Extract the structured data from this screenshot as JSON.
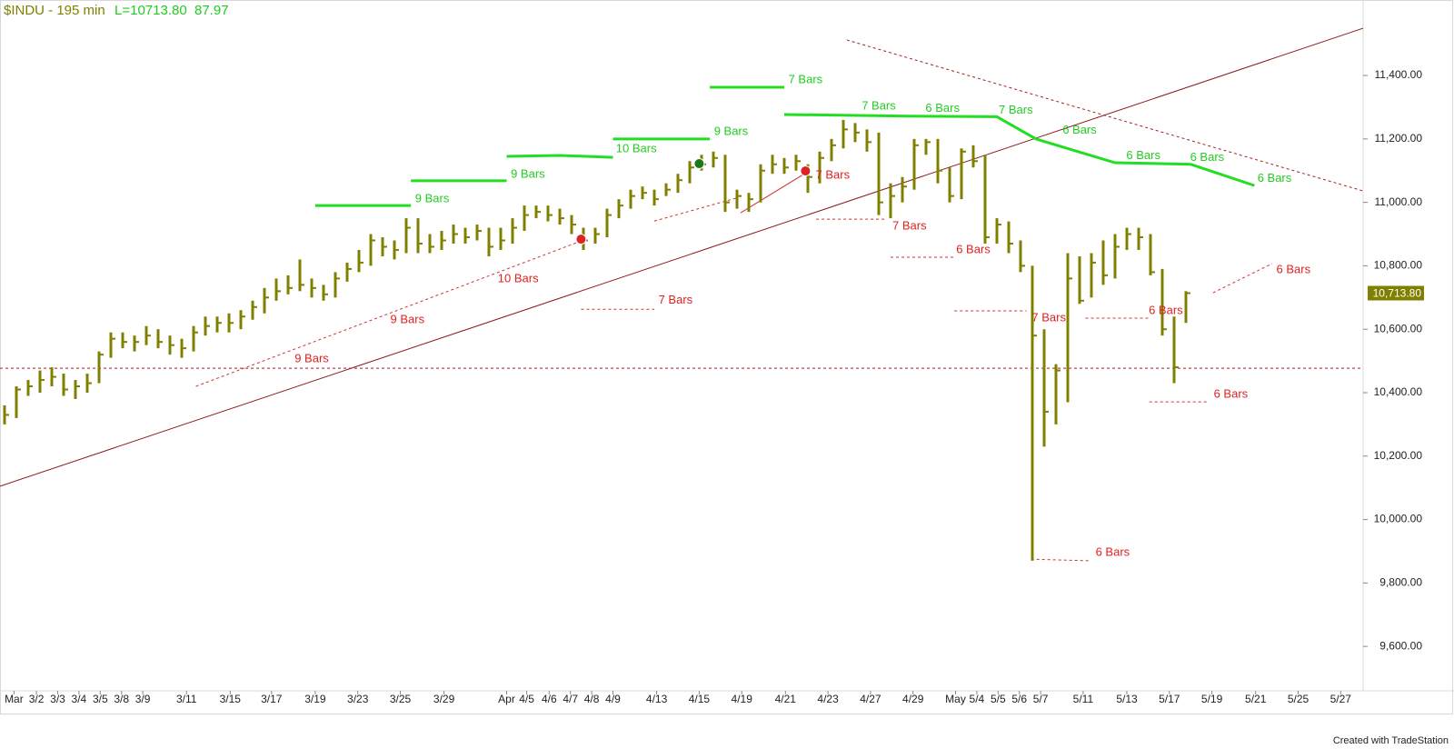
{
  "chart_data": {
    "type": "ohlc",
    "title": "$INDU - 195 min",
    "last": "L=10713.80",
    "change": "87.97",
    "footer": "Created with TradeStation",
    "bar_color": "#808000",
    "ylim": [
      9460,
      11638
    ],
    "xlim": [
      -0.385,
      115
    ],
    "yticks": [
      {
        "value": 9600,
        "label": "9,600.00"
      },
      {
        "value": 9800,
        "label": "9,800.00"
      },
      {
        "value": 10000,
        "label": "10,000.00"
      },
      {
        "value": 10200,
        "label": "10,200.00"
      },
      {
        "value": 10400,
        "label": "10,400.00"
      },
      {
        "value": 10600,
        "label": "10,600.00"
      },
      {
        "value": 10800,
        "label": "10,800.00"
      },
      {
        "value": 11000,
        "label": "11,000.00"
      },
      {
        "value": 11200,
        "label": "11,200.00"
      },
      {
        "value": 11400,
        "label": "11,400.00"
      }
    ],
    "xticks": [
      {
        "value": 0.8,
        "label": "Mar"
      },
      {
        "value": 2.7,
        "label": "3/2"
      },
      {
        "value": 4.5,
        "label": "3/3"
      },
      {
        "value": 6.3,
        "label": "3/4"
      },
      {
        "value": 8.1,
        "label": "3/5"
      },
      {
        "value": 9.9,
        "label": "3/8"
      },
      {
        "value": 11.7,
        "label": "3/9"
      },
      {
        "value": 15.4,
        "label": "3/11"
      },
      {
        "value": 19.1,
        "label": "3/15"
      },
      {
        "value": 22.6,
        "label": "3/17"
      },
      {
        "value": 26.3,
        "label": "3/19"
      },
      {
        "value": 29.9,
        "label": "3/23"
      },
      {
        "value": 33.5,
        "label": "3/25"
      },
      {
        "value": 37.2,
        "label": "3/29"
      },
      {
        "value": 42.5,
        "label": "Apr"
      },
      {
        "value": 44.2,
        "label": "4/5"
      },
      {
        "value": 46.1,
        "label": "4/6"
      },
      {
        "value": 47.9,
        "label": "4/7"
      },
      {
        "value": 49.7,
        "label": "4/8"
      },
      {
        "value": 51.5,
        "label": "4/9"
      },
      {
        "value": 55.2,
        "label": "4/13"
      },
      {
        "value": 58.8,
        "label": "4/15"
      },
      {
        "value": 62.4,
        "label": "4/19"
      },
      {
        "value": 66.1,
        "label": "4/21"
      },
      {
        "value": 69.7,
        "label": "4/23"
      },
      {
        "value": 73.3,
        "label": "4/27"
      },
      {
        "value": 76.9,
        "label": "4/29"
      },
      {
        "value": 80.5,
        "label": "May"
      },
      {
        "value": 82.3,
        "label": "5/4"
      },
      {
        "value": 84.1,
        "label": "5/5"
      },
      {
        "value": 85.9,
        "label": "5/6"
      },
      {
        "value": 87.7,
        "label": "5/7"
      },
      {
        "value": 91.3,
        "label": "5/11"
      },
      {
        "value": 95.0,
        "label": "5/13"
      },
      {
        "value": 98.6,
        "label": "5/17"
      },
      {
        "value": 102.2,
        "label": "5/19"
      },
      {
        "value": 105.9,
        "label": "5/21"
      },
      {
        "value": 109.5,
        "label": "5/25"
      },
      {
        "value": 113.1,
        "label": "5/27"
      }
    ],
    "high": [
      10360,
      10420,
      10440,
      10470,
      10480,
      10460,
      10440,
      10460,
      10530,
      10590,
      10590,
      10580,
      10610,
      10600,
      10580,
      10570,
      10610,
      10640,
      10640,
      10650,
      10660,
      10690,
      10730,
      10760,
      10770,
      10820,
      10760,
      10740,
      10780,
      10810,
      10850,
      10900,
      10890,
      10880,
      10950,
      10950,
      10900,
      10910,
      10930,
      10920,
      10930,
      10920,
      10920,
      10950,
      10990,
      10990,
      10990,
      10980,
      10960,
      10920,
      10920,
      10980,
      11010,
      11040,
      11050,
      11040,
      11060,
      11090,
      11130,
      11150,
      11160,
      11150,
      11040,
      11030,
      11120,
      11150,
      11140,
      11150,
      11120,
      11160,
      11200,
      11260,
      11250,
      11230,
      11220,
      11060,
      11080,
      11200,
      11200,
      11200,
      11110,
      11170,
      11180,
      11150,
      10950,
      10940,
      10880,
      10800,
      10600,
      10490,
      10840,
      10830,
      10840,
      10880,
      10900,
      10920,
      10920,
      10900,
      10790,
      10640,
      10720
    ],
    "low": [
      10300,
      10320,
      10390,
      10400,
      10420,
      10390,
      10380,
      10400,
      10430,
      10510,
      10540,
      10530,
      10550,
      10540,
      10520,
      10510,
      10530,
      10580,
      10590,
      10590,
      10600,
      10630,
      10650,
      10690,
      10710,
      10720,
      10700,
      10690,
      10700,
      10750,
      10780,
      10800,
      10830,
      10820,
      10840,
      10840,
      10840,
      10850,
      10870,
      10870,
      10880,
      10830,
      10850,
      10870,
      10910,
      10950,
      10940,
      10930,
      10900,
      10850,
      10870,
      10890,
      10950,
      10980,
      11010,
      10990,
      11020,
      11030,
      11060,
      11100,
      11110,
      10970,
      10980,
      10970,
      11000,
      11090,
      11090,
      11100,
      11030,
      11060,
      11130,
      11170,
      11190,
      11160,
      10960,
      10950,
      11000,
      11040,
      11150,
      11060,
      11000,
      11010,
      11110,
      10870,
      10870,
      10840,
      10780,
      9870,
      10230,
      10300,
      10370,
      10680,
      10700,
      10740,
      10760,
      10850,
      10850,
      10770,
      10580,
      10430,
      10620
    ],
    "close": [
      10330,
      10410,
      10420,
      10440,
      10450,
      10410,
      10420,
      10430,
      10520,
      10570,
      10560,
      10560,
      10580,
      10560,
      10550,
      10540,
      10590,
      10610,
      10620,
      10620,
      10640,
      10670,
      10700,
      10720,
      10730,
      10740,
      10730,
      10710,
      10760,
      10790,
      10810,
      10880,
      10860,
      10850,
      10920,
      10870,
      10860,
      10880,
      10900,
      10890,
      10910,
      10860,
      10880,
      10920,
      10960,
      10970,
      10960,
      10950,
      10930,
      10880,
      10900,
      10960,
      10990,
      11020,
      11030,
      11010,
      11040,
      11070,
      11110,
      11120,
      11140,
      11000,
      11020,
      11010,
      11100,
      11120,
      11110,
      11130,
      11080,
      11140,
      11180,
      11230,
      11220,
      11190,
      11000,
      11020,
      11050,
      11180,
      11190,
      11100,
      11020,
      11160,
      11130,
      10890,
      10930,
      10870,
      10800,
      10580,
      10340,
      10470,
      10760,
      10690,
      10810,
      10770,
      10860,
      10900,
      10890,
      10780,
      10600,
      10480,
      10713.8
    ],
    "last_price": {
      "value": 10713.8,
      "label": "10,713.80"
    },
    "lines": [
      {
        "x": [
          -0.385,
          115
        ],
        "y": [
          10105,
          11549
        ],
        "color": "#8b1a1a",
        "style": "solid"
      },
      {
        "x": [
          71.3,
          115
        ],
        "y": [
          11512,
          11036
        ],
        "color": "#a02020",
        "style": "dashed"
      },
      {
        "x": [
          -0.385,
          115
        ],
        "y": [
          10477,
          10477
        ],
        "color": "#a02020",
        "style": "dashed"
      },
      {
        "x": [
          16.2,
          48.8
        ],
        "y": [
          10420,
          10878
        ],
        "color": "#cc3333",
        "style": "dashed"
      },
      {
        "x": [
          55,
          61.9
        ],
        "y": [
          10941,
          11013
        ],
        "color": "#cc3333",
        "style": "dashed"
      },
      {
        "x": [
          62.3,
          68.1
        ],
        "y": [
          10967,
          11099
        ],
        "color": "#cc3333",
        "style": "solid"
      },
      {
        "x": [
          102.3,
          107.3
        ],
        "y": [
          10715,
          10807
        ],
        "color": "#cc3333",
        "style": "dashed"
      },
      {
        "x": [
          48.8,
          55
        ],
        "y": [
          10663,
          10663
        ],
        "color": "#cc3333",
        "style": "dashed"
      },
      {
        "x": [
          68.7,
          74.6
        ],
        "y": [
          10947,
          10947
        ],
        "color": "#cc3333",
        "style": "dashed"
      },
      {
        "x": [
          75,
          80.4
        ],
        "y": [
          10827,
          10827
        ],
        "color": "#cc3333",
        "style": "dashed"
      },
      {
        "x": [
          80.4,
          86.5
        ],
        "y": [
          10658,
          10658
        ],
        "color": "#cc3333",
        "style": "dashed"
      },
      {
        "x": [
          91.5,
          96.9
        ],
        "y": [
          10635,
          10635
        ],
        "color": "#cc3333",
        "style": "dashed"
      },
      {
        "x": [
          86.9,
          91.9
        ],
        "y": [
          9875,
          9870
        ],
        "color": "#cc3333",
        "style": "dashed"
      },
      {
        "x": [
          96.9,
          101.9
        ],
        "y": [
          10371,
          10371
        ],
        "color": "#cc3333",
        "style": "dashed"
      },
      {
        "x": [
          26.3,
          34.4
        ],
        "y": [
          10990,
          10990
        ],
        "color": "#22dd22",
        "style": "thick"
      },
      {
        "x": [
          34.4,
          42.5
        ],
        "y": [
          11068,
          11068
        ],
        "color": "#22dd22",
        "style": "thick"
      },
      {
        "x": [
          42.5,
          47,
          51.5
        ],
        "y": [
          11145,
          11148,
          11142
        ],
        "color": "#22dd22",
        "style": "thick"
      },
      {
        "x": [
          51.5,
          59.7
        ],
        "y": [
          11200,
          11200
        ],
        "color": "#22dd22",
        "style": "thick"
      },
      {
        "x": [
          59.7,
          66
        ],
        "y": [
          11363,
          11363
        ],
        "color": "#22dd22",
        "style": "thick"
      },
      {
        "x": [
          66,
          76.5,
          84,
          87.3,
          94,
          100.4,
          105.8
        ],
        "y": [
          11277,
          11272,
          11270,
          11200,
          11125,
          11120,
          11053
        ],
        "color": "#22dd22",
        "style": "thick"
      }
    ],
    "labels": [
      {
        "text": "9 Bars",
        "x": 34.6,
        "y": 11010,
        "color": "#22cc22"
      },
      {
        "text": "9 Bars",
        "x": 42.7,
        "y": 11088,
        "color": "#22cc22"
      },
      {
        "text": "10 Bars",
        "x": 51.6,
        "y": 11168,
        "color": "#22cc22"
      },
      {
        "text": "9 Bars",
        "x": 59.9,
        "y": 11222,
        "color": "#22cc22"
      },
      {
        "text": "7 Bars",
        "x": 66.2,
        "y": 11385,
        "color": "#22cc22"
      },
      {
        "text": "7 Bars",
        "x": 72.4,
        "y": 11302,
        "color": "#22cc22"
      },
      {
        "text": "6 Bars",
        "x": 77.8,
        "y": 11296,
        "color": "#22cc22"
      },
      {
        "text": "7 Bars",
        "x": 84.0,
        "y": 11290,
        "color": "#22cc22"
      },
      {
        "text": "6 Bars",
        "x": 89.4,
        "y": 11226,
        "color": "#22cc22"
      },
      {
        "text": "6 Bars",
        "x": 94.8,
        "y": 11146,
        "color": "#22cc22"
      },
      {
        "text": "6 Bars",
        "x": 100.2,
        "y": 11140,
        "color": "#22cc22"
      },
      {
        "text": "6 Bars",
        "x": 105.9,
        "y": 11075,
        "color": "#22cc22"
      },
      {
        "text": "9 Bars",
        "x": 24.4,
        "y": 10506,
        "color": "#dd2222"
      },
      {
        "text": "9 Bars",
        "x": 32.5,
        "y": 10629,
        "color": "#dd2222"
      },
      {
        "text": "10 Bars",
        "x": 41.6,
        "y": 10758,
        "color": "#dd2222"
      },
      {
        "text": "7 Bars",
        "x": 55.2,
        "y": 10690,
        "color": "#dd2222"
      },
      {
        "text": "7 Bars",
        "x": 68.5,
        "y": 11085,
        "color": "#dd2222"
      },
      {
        "text": "7 Bars",
        "x": 75.0,
        "y": 10924,
        "color": "#dd2222"
      },
      {
        "text": "6 Bars",
        "x": 80.4,
        "y": 10850,
        "color": "#dd2222"
      },
      {
        "text": "7 Bars",
        "x": 86.8,
        "y": 10635,
        "color": "#dd2222"
      },
      {
        "text": "6 Bars",
        "x": 96.7,
        "y": 10658,
        "color": "#dd2222"
      },
      {
        "text": "6 Bars",
        "x": 92.2,
        "y": 9895,
        "color": "#dd2222"
      },
      {
        "text": "6 Bars",
        "x": 102.2,
        "y": 10394,
        "color": "#dd2222"
      },
      {
        "text": "6 Bars",
        "x": 107.5,
        "y": 10787,
        "color": "#dd2222"
      }
    ],
    "signals": [
      {
        "x": 58.8,
        "y": 11122,
        "color": "#1a7a1a"
      },
      {
        "x": 48.8,
        "y": 10884,
        "color": "#dd2222"
      },
      {
        "x": 67.8,
        "y": 11099,
        "color": "#dd2222"
      }
    ]
  }
}
